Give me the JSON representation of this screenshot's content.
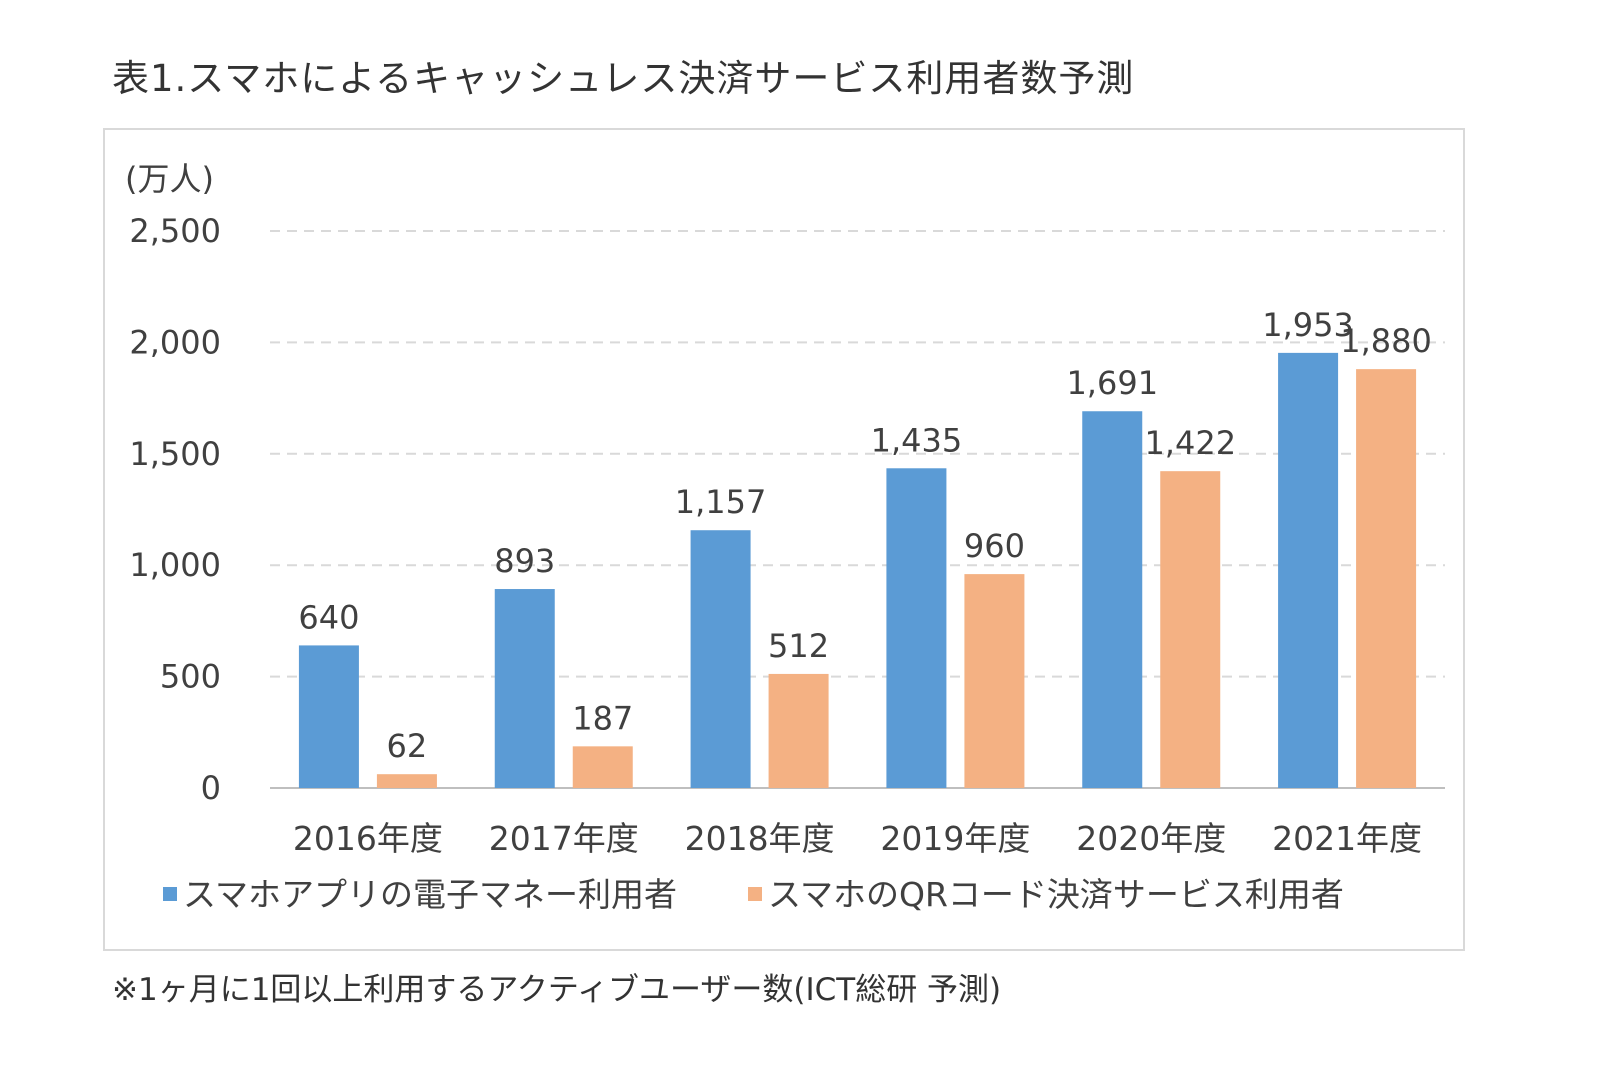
{
  "title": "表1.スマホによるキャッシュレス決済サービス利用者数予測",
  "footnote": "※1ヶ月に1回以上利用するアクティブユーザー数(ICT総研 予測)",
  "colors": {
    "series1": "#5b9bd5",
    "series2": "#f4b183",
    "grid": "#d9d9d9",
    "axis": "#bfbfbf"
  },
  "chart_data": {
    "type": "bar",
    "title": "表1.スマホによるキャッシュレス決済サービス利用者数予測",
    "ylabel": "(万人)",
    "xlabel": "",
    "ylim": [
      0,
      2500
    ],
    "yticks": [
      0,
      500,
      1000,
      1500,
      2000,
      2500
    ],
    "ytick_labels": [
      "0",
      "500",
      "1,000",
      "1,500",
      "2,000",
      "2,500"
    ],
    "grid": true,
    "legend_position": "bottom",
    "categories": [
      "2016年度",
      "2017年度",
      "2018年度",
      "2019年度",
      "2020年度",
      "2021年度"
    ],
    "series": [
      {
        "name": "スマホアプリの電子マネー利用者",
        "values": [
          640,
          893,
          1157,
          1435,
          1691,
          1953
        ],
        "labels": [
          "640",
          "893",
          "1,157",
          "1,435",
          "1,691",
          "1,953"
        ]
      },
      {
        "name": "スマホのQRコード決済サービス利用者",
        "values": [
          62,
          187,
          512,
          960,
          1422,
          1880
        ],
        "labels": [
          "62",
          "187",
          "512",
          "960",
          "1,422",
          "1,880"
        ]
      }
    ]
  }
}
